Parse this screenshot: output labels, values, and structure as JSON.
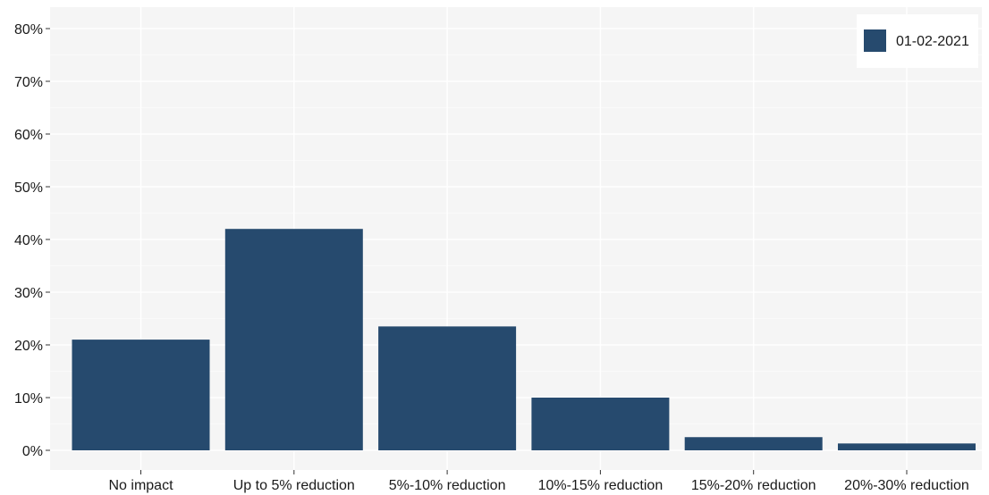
{
  "chart_data": {
    "type": "bar",
    "categories": [
      "No impact",
      "Up to 5% reduction",
      "5%-10% reduction",
      "10%-15% reduction",
      "15%-20% reduction",
      "20%-30% reduction"
    ],
    "series": [
      {
        "name": "01-02-2021",
        "values": [
          21,
          42,
          23.5,
          10,
          2.5,
          1.3
        ]
      }
    ],
    "ylim": [
      0,
      80
    ],
    "yticks": [
      0,
      10,
      20,
      30,
      40,
      50,
      60,
      70,
      80
    ],
    "ytick_labels": [
      "0%",
      "10%",
      "20%",
      "30%",
      "40%",
      "50%",
      "60%",
      "70%",
      "80%"
    ],
    "title": "",
    "xlabel": "",
    "ylabel": "",
    "grid": true,
    "legend_position": "top-right",
    "colors": {
      "bar": "#264a6e",
      "panel_background": "#f5f5f5",
      "grid_major": "#ffffff",
      "grid_minor": "#fafafa",
      "legend_background": "#ffffff"
    }
  }
}
